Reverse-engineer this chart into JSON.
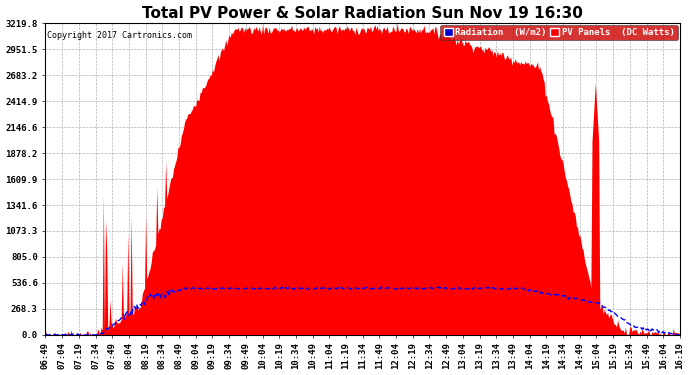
{
  "title": "Total PV Power & Solar Radiation Sun Nov 19 16:30",
  "copyright": "Copyright 2017 Cartronics.com",
  "legend_radiation": "Radiation  (W/m2)",
  "legend_pv": "PV Panels  (DC Watts)",
  "radiation_color": "#0000FF",
  "pv_color": "#FF0000",
  "background_color": "#FFFFFF",
  "plot_bg_color": "#FFFFFF",
  "grid_color": "#AAAAAA",
  "yticks": [
    0.0,
    268.3,
    536.6,
    805.0,
    1073.3,
    1341.6,
    1609.9,
    1878.2,
    2146.6,
    2414.9,
    2683.2,
    2951.5,
    3219.8
  ],
  "ymax": 3219.8,
  "ymin": 0.0,
  "xtick_labels": [
    "06:49",
    "07:04",
    "07:19",
    "07:34",
    "07:49",
    "08:04",
    "08:19",
    "08:34",
    "08:49",
    "09:04",
    "09:19",
    "09:34",
    "09:49",
    "10:04",
    "10:19",
    "10:34",
    "10:49",
    "11:04",
    "11:19",
    "11:34",
    "11:49",
    "12:04",
    "12:19",
    "12:34",
    "12:49",
    "13:04",
    "13:19",
    "13:34",
    "13:49",
    "14:04",
    "14:19",
    "14:34",
    "14:49",
    "15:04",
    "15:19",
    "15:34",
    "15:49",
    "16:04",
    "16:19"
  ],
  "n_ticks": 39,
  "title_fontsize": 11,
  "tick_fontsize": 6.5,
  "label_fontsize": 7,
  "pv_peak": 3219.8,
  "rad_peak": 520.0
}
